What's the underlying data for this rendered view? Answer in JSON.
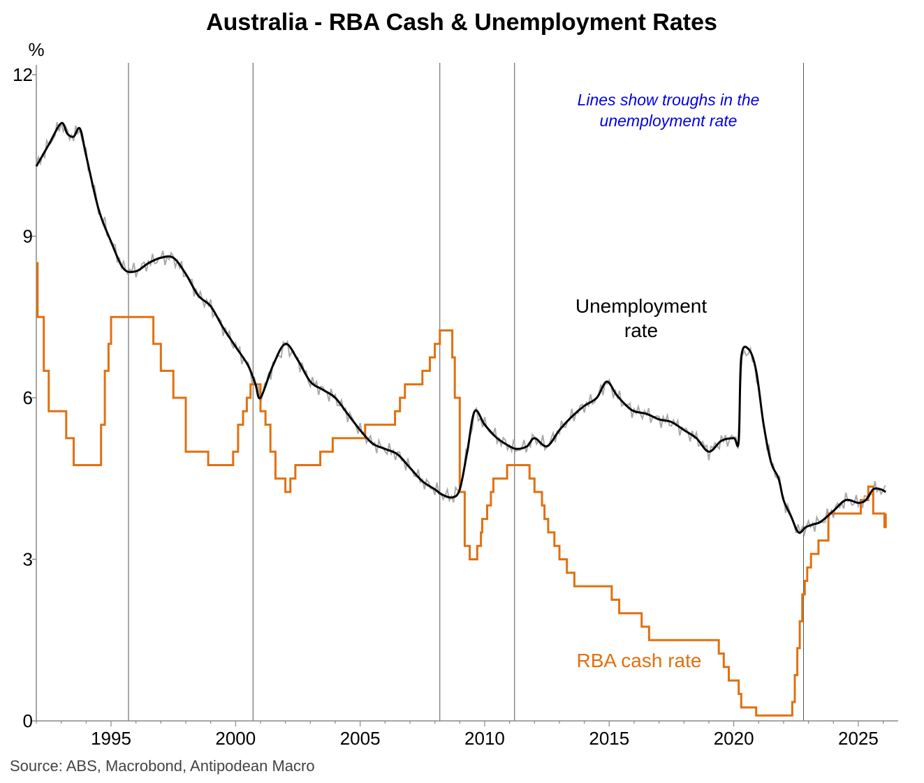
{
  "chart_data": {
    "type": "line",
    "title": "Australia - RBA Cash & Unemployment Rates",
    "ylabel": "%",
    "ylim": [
      0,
      12
    ],
    "yticks": [
      0,
      3,
      6,
      9,
      12
    ],
    "xlim": [
      1992.0,
      2026.6
    ],
    "xticks": [
      1995,
      2000,
      2005,
      2010,
      2015,
      2020,
      2025
    ],
    "grid": false,
    "source": "Source: ABS, Macrobond, Antipodean Macro",
    "annotation": "Lines show troughs in the unemployment rate",
    "annotation_lines": [
      "Lines show troughs in the",
      "unemployment rate"
    ],
    "trough_lines": [
      1995.7,
      2000.7,
      2008.2,
      2011.2,
      2022.8
    ],
    "colors": {
      "unemployment": "#000000",
      "unemployment_monthly": "#aaaaaa",
      "cash": "#e0700f",
      "annotation": "#0000e6",
      "trough": "#555555"
    },
    "series": [
      {
        "name": "Unemployment rate",
        "label_lines": [
          "Unemployment",
          "rate"
        ],
        "x": [
          1992.0,
          1992.5,
          1993.0,
          1993.25,
          1993.5,
          1993.75,
          1994.0,
          1994.5,
          1995.0,
          1995.5,
          1996.0,
          1996.5,
          1997.0,
          1997.5,
          1998.0,
          1998.5,
          1999.0,
          1999.5,
          2000.0,
          2000.5,
          2000.8,
          2001.0,
          2001.5,
          2002.0,
          2002.5,
          2003.0,
          2003.5,
          2004.0,
          2004.5,
          2005.0,
          2005.5,
          2006.0,
          2006.5,
          2007.0,
          2007.5,
          2008.0,
          2008.3,
          2008.7,
          2009.0,
          2009.3,
          2009.6,
          2010.0,
          2010.5,
          2011.0,
          2011.3,
          2011.7,
          2012.0,
          2012.5,
          2013.0,
          2013.5,
          2014.0,
          2014.5,
          2014.9,
          2015.3,
          2015.7,
          2016.0,
          2016.5,
          2017.0,
          2017.5,
          2018.0,
          2018.5,
          2019.0,
          2019.5,
          2020.0,
          2020.2,
          2020.3,
          2020.6,
          2020.9,
          2021.2,
          2021.5,
          2021.8,
          2022.0,
          2022.3,
          2022.6,
          2022.9,
          2023.2,
          2023.5,
          2024.0,
          2024.5,
          2025.0,
          2025.3,
          2025.6,
          2025.9,
          2026.1
        ],
        "values": [
          10.3,
          10.7,
          11.1,
          10.9,
          10.85,
          11.0,
          10.5,
          9.5,
          8.9,
          8.4,
          8.35,
          8.5,
          8.6,
          8.6,
          8.3,
          7.9,
          7.7,
          7.3,
          6.95,
          6.6,
          6.25,
          6.0,
          6.6,
          7.0,
          6.7,
          6.3,
          6.15,
          6.0,
          5.7,
          5.4,
          5.15,
          5.05,
          4.95,
          4.7,
          4.45,
          4.3,
          4.2,
          4.15,
          4.3,
          5.0,
          5.75,
          5.5,
          5.25,
          5.1,
          5.05,
          5.1,
          5.25,
          5.1,
          5.4,
          5.65,
          5.85,
          6.0,
          6.3,
          6.05,
          5.85,
          5.75,
          5.7,
          5.6,
          5.55,
          5.4,
          5.25,
          5.0,
          5.2,
          5.25,
          5.2,
          6.75,
          6.9,
          6.5,
          5.5,
          4.8,
          4.5,
          4.1,
          3.8,
          3.5,
          3.6,
          3.65,
          3.7,
          3.9,
          4.1,
          4.05,
          4.1,
          4.3,
          4.3,
          4.25
        ]
      },
      {
        "name": "RBA cash rate",
        "label_lines": [
          "RBA cash rate"
        ],
        "x": [
          1992.0,
          1992.05,
          1992.3,
          1992.5,
          1993.2,
          1993.5,
          1994.6,
          1994.75,
          1994.9,
          1995.0,
          1996.7,
          1997.0,
          1997.5,
          1998.0,
          1998.9,
          1999.9,
          2000.1,
          2000.3,
          2000.45,
          2000.6,
          2001.0,
          2001.2,
          2001.4,
          2001.6,
          2002.0,
          2002.2,
          2002.4,
          2003.4,
          2003.9,
          2004.0,
          2005.2,
          2006.4,
          2006.6,
          2006.8,
          2007.5,
          2007.8,
          2008.0,
          2008.2,
          2008.7,
          2008.8,
          2009.0,
          2009.2,
          2009.4,
          2009.7,
          2009.85,
          2009.9,
          2010.1,
          2010.25,
          2010.35,
          2010.9,
          2011.8,
          2012.0,
          2012.3,
          2012.4,
          2012.55,
          2012.8,
          2013.0,
          2013.3,
          2013.6,
          2014.1,
          2015.1,
          2015.4,
          2016.3,
          2016.6,
          2019.4,
          2019.6,
          2019.8,
          2020.2,
          2020.3,
          2020.9,
          2022.35,
          2022.45,
          2022.55,
          2022.65,
          2022.75,
          2022.85,
          2022.95,
          2023.1,
          2023.4,
          2023.8,
          2025.1,
          2025.4,
          2025.6,
          2026.05,
          2026.1
        ],
        "values": [
          8.5,
          7.5,
          6.5,
          5.75,
          5.25,
          4.75,
          5.5,
          6.5,
          7.0,
          7.5,
          7.0,
          6.5,
          6.0,
          5.0,
          4.75,
          5.0,
          5.5,
          5.75,
          6.0,
          6.25,
          5.75,
          5.5,
          5.0,
          4.5,
          4.25,
          4.5,
          4.75,
          5.0,
          5.25,
          5.25,
          5.5,
          5.75,
          6.0,
          6.25,
          6.5,
          6.75,
          7.0,
          7.25,
          6.75,
          6.0,
          4.25,
          3.25,
          3.0,
          3.25,
          3.5,
          3.75,
          4.0,
          4.25,
          4.5,
          4.75,
          4.5,
          4.25,
          4.0,
          3.75,
          3.5,
          3.25,
          3.0,
          2.75,
          2.5,
          2.5,
          2.25,
          2.0,
          1.75,
          1.5,
          1.25,
          1.0,
          0.75,
          0.5,
          0.25,
          0.1,
          0.35,
          0.85,
          1.35,
          1.85,
          2.35,
          2.6,
          2.85,
          3.1,
          3.35,
          3.85,
          4.1,
          4.35,
          3.85,
          3.6,
          3.85
        ]
      }
    ]
  }
}
